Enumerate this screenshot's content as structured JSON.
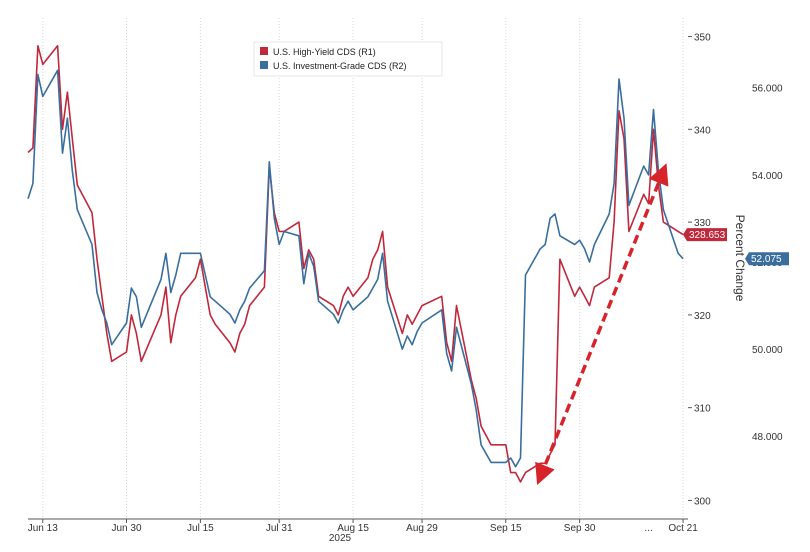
{
  "chart_data": {
    "type": "line",
    "title": "",
    "xlabel": "",
    "year_label": "2025",
    "ylabel_right": "Percent Change",
    "x_tick_labels": [
      "Jun 13",
      "Jun 30",
      "Jul 15",
      "Jul 31",
      "Aug 15",
      "Aug 29",
      "Sep 15",
      "Sep 30",
      "Oct 21"
    ],
    "x_tick_dates": [
      "2025-06-13",
      "2025-06-30",
      "2025-07-15",
      "2025-07-31",
      "2025-08-15",
      "2025-08-29",
      "2025-09-15",
      "2025-09-30",
      "2025-10-21"
    ],
    "x_ellipsis": "...",
    "xlim": [
      "2025-06-10",
      "2025-10-22"
    ],
    "axes": [
      {
        "id": "R1",
        "ylim": [
          298,
          352
        ],
        "tick_values": [
          300,
          310,
          320,
          330,
          340,
          350
        ],
        "tick_labels": [
          "300",
          "310",
          "320",
          "330",
          "340",
          "350"
        ],
        "last_value_label": "328.653"
      },
      {
        "id": "R2",
        "ylim": [
          46.1,
          57.6
        ],
        "tick_values": [
          48,
          50,
          52,
          54,
          56
        ],
        "tick_labels": [
          "48.000",
          "50.000",
          "52.000",
          "54.000",
          "56.000"
        ],
        "last_value_label": "52.075"
      }
    ],
    "grid": {
      "vertical": true,
      "horizontal": false
    },
    "legend_placement": "top-center",
    "series": [
      {
        "name": "U.S. High-Yield CDS (R1)",
        "axis": "R1",
        "color": "#c0283c",
        "dates": [
          "2025-06-10",
          "2025-06-11",
          "2025-06-12",
          "2025-06-13",
          "2025-06-16",
          "2025-06-17",
          "2025-06-18",
          "2025-06-19",
          "2025-06-20",
          "2025-06-23",
          "2025-06-24",
          "2025-06-25",
          "2025-06-26",
          "2025-06-27",
          "2025-06-30",
          "2025-07-01",
          "2025-07-02",
          "2025-07-03",
          "2025-07-07",
          "2025-07-08",
          "2025-07-09",
          "2025-07-10",
          "2025-07-11",
          "2025-07-14",
          "2025-07-15",
          "2025-07-16",
          "2025-07-17",
          "2025-07-18",
          "2025-07-21",
          "2025-07-22",
          "2025-07-23",
          "2025-07-24",
          "2025-07-25",
          "2025-07-28",
          "2025-07-29",
          "2025-07-30",
          "2025-07-31",
          "2025-08-01",
          "2025-08-04",
          "2025-08-05",
          "2025-08-06",
          "2025-08-07",
          "2025-08-08",
          "2025-08-11",
          "2025-08-12",
          "2025-08-13",
          "2025-08-14",
          "2025-08-15",
          "2025-08-18",
          "2025-08-19",
          "2025-08-20",
          "2025-08-21",
          "2025-08-22",
          "2025-08-25",
          "2025-08-26",
          "2025-08-27",
          "2025-08-28",
          "2025-08-29",
          "2025-09-02",
          "2025-09-03",
          "2025-09-04",
          "2025-09-05",
          "2025-09-08",
          "2025-09-09",
          "2025-09-10",
          "2025-09-11",
          "2025-09-12",
          "2025-09-15",
          "2025-09-16",
          "2025-09-17",
          "2025-09-18",
          "2025-09-19",
          "2025-09-22",
          "2025-09-23",
          "2025-09-24",
          "2025-09-25",
          "2025-09-26",
          "2025-09-29",
          "2025-09-30",
          "2025-10-01",
          "2025-10-02",
          "2025-10-03",
          "2025-10-06",
          "2025-10-07",
          "2025-10-08",
          "2025-10-09",
          "2025-10-10",
          "2025-10-13",
          "2025-10-14",
          "2025-10-15",
          "2025-10-16",
          "2025-10-17",
          "2025-10-20",
          "2025-10-21"
        ],
        "values": [
          337.5,
          338,
          349,
          347,
          349,
          340,
          344,
          339,
          334,
          331,
          326,
          322,
          318,
          315,
          316,
          320,
          318,
          315,
          320,
          323,
          317,
          320,
          322,
          324,
          326,
          323,
          320,
          319,
          317,
          316,
          318,
          319,
          321,
          323,
          336,
          331,
          329,
          329,
          330,
          325,
          327,
          326,
          322,
          321,
          320,
          322,
          323,
          322,
          324,
          326,
          327,
          329,
          323,
          318,
          320,
          319,
          320,
          321,
          322,
          317,
          315,
          321,
          313,
          311,
          308,
          307,
          306,
          306,
          303,
          303,
          302,
          303,
          304,
          304,
          305,
          306,
          326,
          322,
          323,
          322,
          321,
          323,
          324,
          330,
          342,
          339,
          329,
          333,
          332,
          340,
          334,
          330,
          329,
          328.653
        ]
      },
      {
        "name": "U.S. Investment-Grade CDS (R2)",
        "axis": "R2",
        "color": "#3a6e9e",
        "dates": [
          "2025-06-10",
          "2025-06-11",
          "2025-06-12",
          "2025-06-13",
          "2025-06-16",
          "2025-06-17",
          "2025-06-18",
          "2025-06-19",
          "2025-06-20",
          "2025-06-23",
          "2025-06-24",
          "2025-06-25",
          "2025-06-26",
          "2025-06-27",
          "2025-06-30",
          "2025-07-01",
          "2025-07-02",
          "2025-07-03",
          "2025-07-07",
          "2025-07-08",
          "2025-07-09",
          "2025-07-10",
          "2025-07-11",
          "2025-07-14",
          "2025-07-15",
          "2025-07-16",
          "2025-07-17",
          "2025-07-18",
          "2025-07-21",
          "2025-07-22",
          "2025-07-23",
          "2025-07-24",
          "2025-07-25",
          "2025-07-28",
          "2025-07-29",
          "2025-07-30",
          "2025-07-31",
          "2025-08-01",
          "2025-08-04",
          "2025-08-05",
          "2025-08-06",
          "2025-08-07",
          "2025-08-08",
          "2025-08-11",
          "2025-08-12",
          "2025-08-13",
          "2025-08-14",
          "2025-08-15",
          "2025-08-18",
          "2025-08-19",
          "2025-08-20",
          "2025-08-21",
          "2025-08-22",
          "2025-08-25",
          "2025-08-26",
          "2025-08-27",
          "2025-08-28",
          "2025-08-29",
          "2025-09-02",
          "2025-09-03",
          "2025-09-04",
          "2025-09-05",
          "2025-09-08",
          "2025-09-09",
          "2025-09-10",
          "2025-09-11",
          "2025-09-12",
          "2025-09-15",
          "2025-09-16",
          "2025-09-17",
          "2025-09-18",
          "2025-09-19",
          "2025-09-22",
          "2025-09-23",
          "2025-09-24",
          "2025-09-25",
          "2025-09-26",
          "2025-09-29",
          "2025-09-30",
          "2025-10-01",
          "2025-10-02",
          "2025-10-03",
          "2025-10-06",
          "2025-10-07",
          "2025-10-08",
          "2025-10-09",
          "2025-10-10",
          "2025-10-13",
          "2025-10-14",
          "2025-10-15",
          "2025-10-16",
          "2025-10-17",
          "2025-10-20",
          "2025-10-21"
        ],
        "values": [
          53.45,
          53.8,
          56.3,
          55.8,
          56.4,
          54.5,
          55.3,
          54.1,
          53.2,
          52.4,
          51.3,
          50.9,
          50.6,
          50.1,
          50.6,
          51.4,
          51.2,
          50.5,
          51.6,
          52.2,
          51.3,
          51.7,
          52.2,
          52.2,
          52.2,
          51.7,
          51.2,
          51.1,
          50.8,
          50.6,
          50.9,
          51.1,
          51.4,
          51.8,
          54.3,
          53,
          52.4,
          52.7,
          52.6,
          51.5,
          52.2,
          51.9,
          51.1,
          50.8,
          50.6,
          50.9,
          51.1,
          50.9,
          51.2,
          51.4,
          51.6,
          52.2,
          51.1,
          50,
          50.3,
          50.1,
          50.4,
          50.6,
          50.9,
          49.9,
          49.5,
          50.5,
          49.2,
          48.6,
          47.8,
          47.6,
          47.4,
          47.4,
          47.5,
          47.3,
          47.5,
          51.7,
          52.3,
          52.4,
          53,
          53.1,
          52.6,
          52.4,
          52.5,
          52.3,
          52,
          52.4,
          53.1,
          53.8,
          56.2,
          55.3,
          53.3,
          54.2,
          54,
          55.5,
          54.1,
          53.2,
          52.2,
          52.075
        ]
      }
    ],
    "annotations": [
      {
        "type": "arrow",
        "style": "dashed",
        "color": "#d7242a",
        "from": {
          "date": "2025-09-22",
          "value": 302.5
        },
        "to": {
          "date": "2025-10-17",
          "value": 335.5
        },
        "axis": "R1"
      }
    ],
    "legend": [
      {
        "label": "U.S. High-Yield CDS (R1)",
        "color": "#c0283c"
      },
      {
        "label": "U.S. Investment-Grade CDS (R2)",
        "color": "#3a6e9e"
      }
    ]
  }
}
